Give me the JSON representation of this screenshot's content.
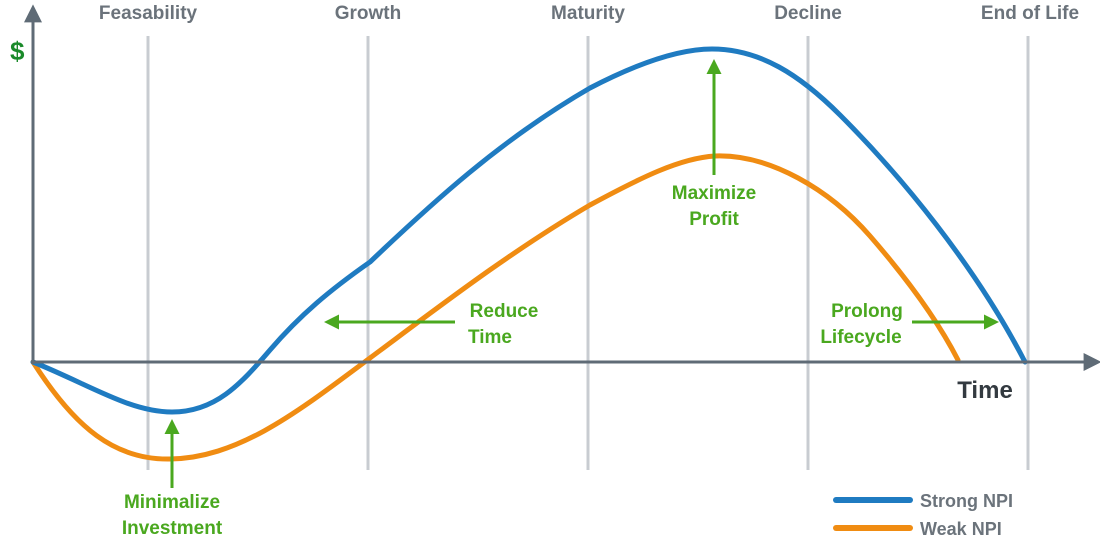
{
  "axes": {
    "y_label": "$",
    "x_label": "Time"
  },
  "phases": [
    {
      "label": "Feasability"
    },
    {
      "label": "Growth"
    },
    {
      "label": "Maturity"
    },
    {
      "label": "Decline"
    },
    {
      "label": "End of Life"
    }
  ],
  "annotations": {
    "minimize": [
      "Minimalize",
      "Investment"
    ],
    "reduce": [
      "Reduce",
      "Time"
    ],
    "maximize": [
      "Maximize",
      "Profit"
    ],
    "prolong": [
      "Prolong",
      "Lifecycle"
    ]
  },
  "legend": [
    {
      "label": "Strong NPI",
      "color": "#1f7bc1"
    },
    {
      "label": "Weak NPI",
      "color": "#f08c12"
    }
  ],
  "colors": {
    "axis": "#5f6b76",
    "grid": "#c8ccd1",
    "annotation": "#4aa81f",
    "strong": "#1f7bc1",
    "weak": "#f08c12",
    "dollar": "#1a8a2a"
  }
}
